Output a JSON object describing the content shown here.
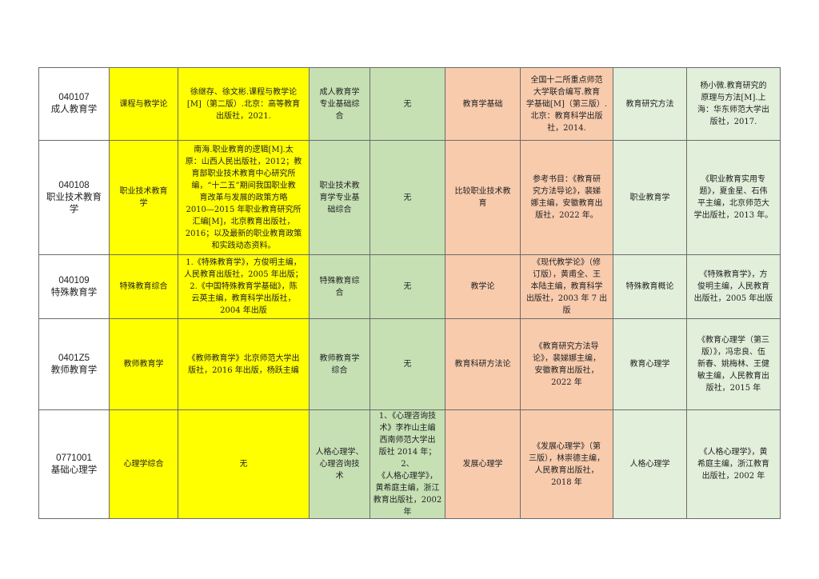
{
  "colors": {
    "yellow": "#ffff00",
    "green": "#c6e0b4",
    "salmon": "#f8cbad",
    "light_green": "#e2efda"
  },
  "rows": [
    {
      "code": "040107\n成人教育学",
      "subject1": "课程与教学论",
      "ref1": "徐继存、徐文彬.课程与教学论\n[M]（第二版）.北京：高等教育\n出版社，2021.",
      "subject2": "成人教育学\n专业基础综\n合",
      "ref2": "无",
      "subject3": "教育学基础",
      "ref3": "全国十二所重点师范\n大学联合编写.教育\n学基础[M]（第三版）.\n北京：教育科学出版\n社，2014.",
      "subject4": "教育研究方法",
      "ref4": "杨小微.教育研究的\n原理与方法[M].上\n海：华东师范大学出\n版社，2017."
    },
    {
      "code": "040108\n职业技术教育\n学",
      "subject1": "职业技术教育\n学",
      "ref1": "南海.职业教育的逻辑[M].太\n原：山西人民出版社，2012；教\n育部职业技术教育中心研究所\n编，“十二五”期间我国职业教\n育改革与发展的政策方略\n2010—2015 年职业教育研究所\n汇编[M]，北京教育出版社，\n2016；以及最新的职业教育政策\n和实践动态资料。",
      "subject2": "职业技术教\n育学专业基\n础综合",
      "ref2": "无",
      "subject3": "比较职业技术教\n育",
      "ref3": "参考书目：《教育研\n究方法导论》，裴娣\n娜主编，安徽教育出\n版社，2022 年。",
      "subject4": "职业教育学",
      "ref4": "《职业教育实用专\n题》，夏金星、石伟\n平主编，北京师范大\n学出版社，2013 年。"
    },
    {
      "code": "040109\n特殊教育学",
      "subject1": "特殊教育综合",
      "ref1": "1.《特殊教育学》，方俊明主编，\n人民教育出版社，2005 年出版；\n2.《中国特殊教育学基础》，陈\n云英主编，教育科学出版社，\n2004 年出版",
      "subject2": "特殊教育综\n合",
      "ref2": "无",
      "subject3": "教学论",
      "ref3": "《现代教学论》（修\n订版），黄甫全、王\n本陆主编，教育科学\n出版社，2003 年 7 出\n版",
      "subject4": "特殊教育概论",
      "ref4": "《特殊教育学》，方\n俊明主编，人民教育\n出版社，2005 年出版"
    },
    {
      "code": "0401Z5\n教师教育学",
      "subject1": "教师教育学",
      "ref1": "《教师教育学》北京师范大学出\n版社，2016 年出版，杨跃主编",
      "subject2": "教师教育学\n综合",
      "ref2": "无",
      "subject3": "教育科研方法论",
      "ref3": "《教育研究方法导\n论》，裴娣娜主编，\n安徽教育出版社，\n2022 年",
      "subject4": "教育心理学",
      "ref4": "《教育心理学（第三\n版）》，冯忠良、伍\n新春、姚梅林、王健\n敏主编，人民教育出\n版社，2015 年"
    },
    {
      "code": "0771001\n基础心理学",
      "subject1": "心理学综合",
      "ref1": "无",
      "subject2": "人格心理学、\n心理咨询技\n术",
      "ref2": "1、《心理咨询技\n术》李祚山主编\n西南师范大学出\n版社 2014 年；2、\n《人格心理学》，\n黄希庭主编，浙江\n教育出版社，2002\n年",
      "subject3": "发展心理学",
      "ref3": "《发展心理学》（第\n三版），林崇德主编，\n人民教育出版社，\n2018 年",
      "subject4": "人格心理学",
      "ref4": "《人格心理学》，黄\n希庭主编，浙江教育\n出版社，2002 年"
    }
  ]
}
